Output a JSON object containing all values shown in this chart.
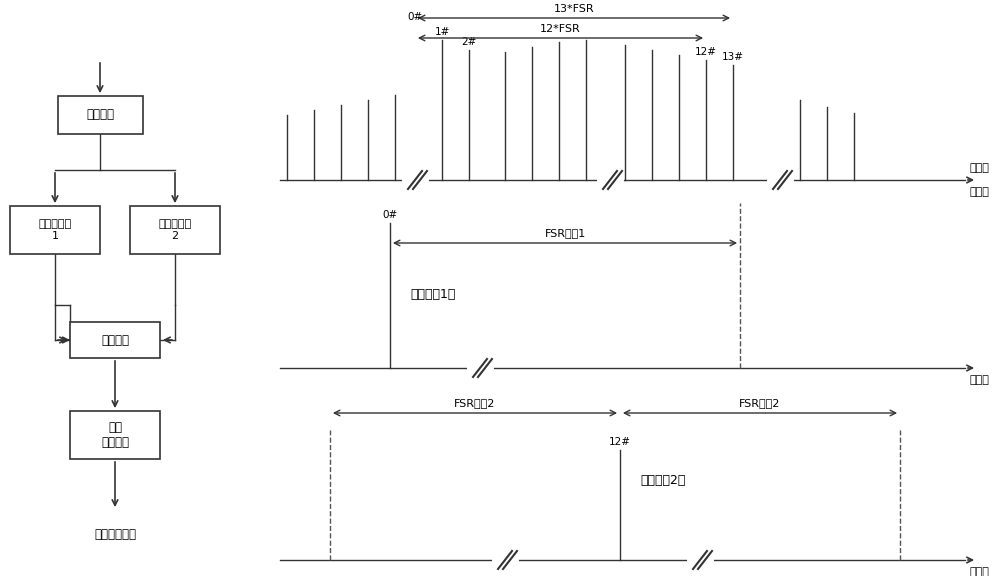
{
  "bg_color": "#ffffff",
  "text_color": "#000000",
  "line_color": "#333333",
  "box_labels": {
    "splitter": "光分路器",
    "filter1": "光子滤波器\n1",
    "filter2": "光子滤波器\n2",
    "combiner": "光合波器",
    "detector": "第一\n光探测器"
  },
  "bottom_label": "微波信号输出",
  "panel1_xlabel1": "光频梳",
  "panel1_xlabel2": "光波长",
  "panel2_xlabel": "光波长",
  "panel3_xlabel": "光波长",
  "panel2_label": "光子滤波1后",
  "panel3_label": "光子滤波2后",
  "fsr_label_13": "13*FSR",
  "fsr_label_12": "12*FSR",
  "fsr_label_filter1": "FSR滤波1",
  "fsr_label_filter2_left": "FSR滤波2",
  "fsr_label_filter2_right": "FSR滤波2",
  "label_0hash": "0#",
  "label_1hash": "1#",
  "label_2hash": "2#",
  "label_12hash": "12#",
  "label_13hash": "13#"
}
